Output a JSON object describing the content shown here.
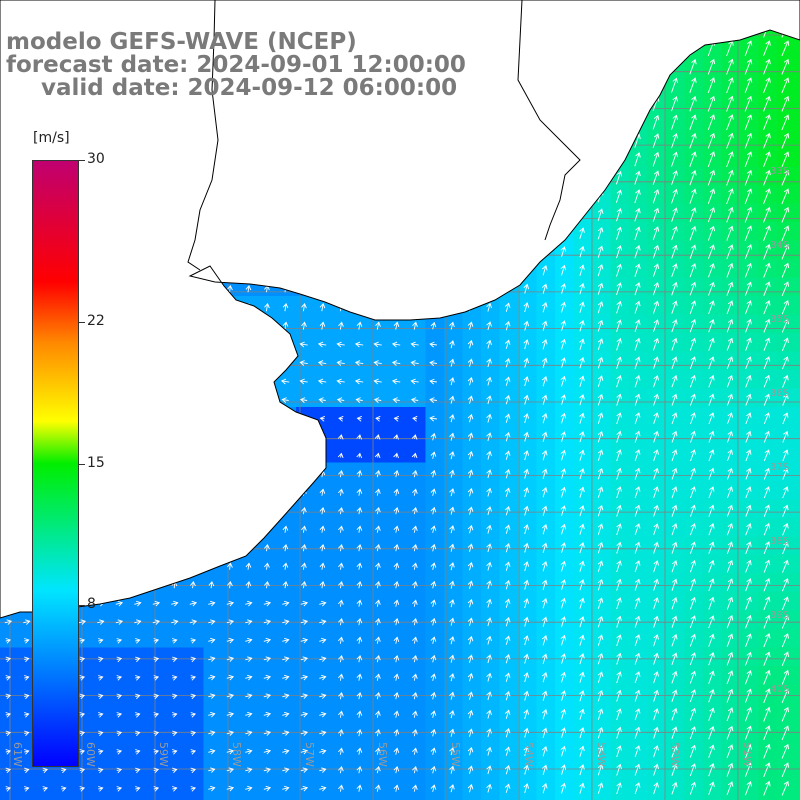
{
  "title": {
    "line1": "modelo GEFS-WAVE (NCEP)",
    "line2": "forecast date: 2024-09-01 12:00:00",
    "line3": "valid date: 2024-09-12 06:00:00"
  },
  "colorbar": {
    "unit": "[m/s]",
    "min": 0,
    "max": 30,
    "ticks": [
      {
        "label": "30",
        "value": 30
      },
      {
        "label": "22",
        "value": 22
      },
      {
        "label": "15",
        "value": 15
      },
      {
        "label": "8",
        "value": 8
      }
    ],
    "colors": [
      "#0000ff",
      "#00e5ff",
      "#00ee00",
      "#ffff00",
      "#ff8800",
      "#ff0000",
      "#c00070"
    ]
  },
  "axis_labels": {
    "longitude": [
      "61W",
      "60W",
      "59W",
      "58W",
      "57W",
      "56W",
      "55W",
      "54W",
      "53W",
      "52W",
      "51W"
    ],
    "latitude": [
      "33S",
      "34S",
      "35S",
      "36S",
      "37S",
      "38S",
      "39S",
      "40S"
    ]
  },
  "map": {
    "land_color": "#ffffff",
    "coast_color": "#000000",
    "grid_color": "#808080",
    "arrow_color": "#ffffff",
    "field_colors": {
      "low": "#0000ff",
      "mid": "#00e5ff",
      "high": "#00ee00"
    }
  }
}
